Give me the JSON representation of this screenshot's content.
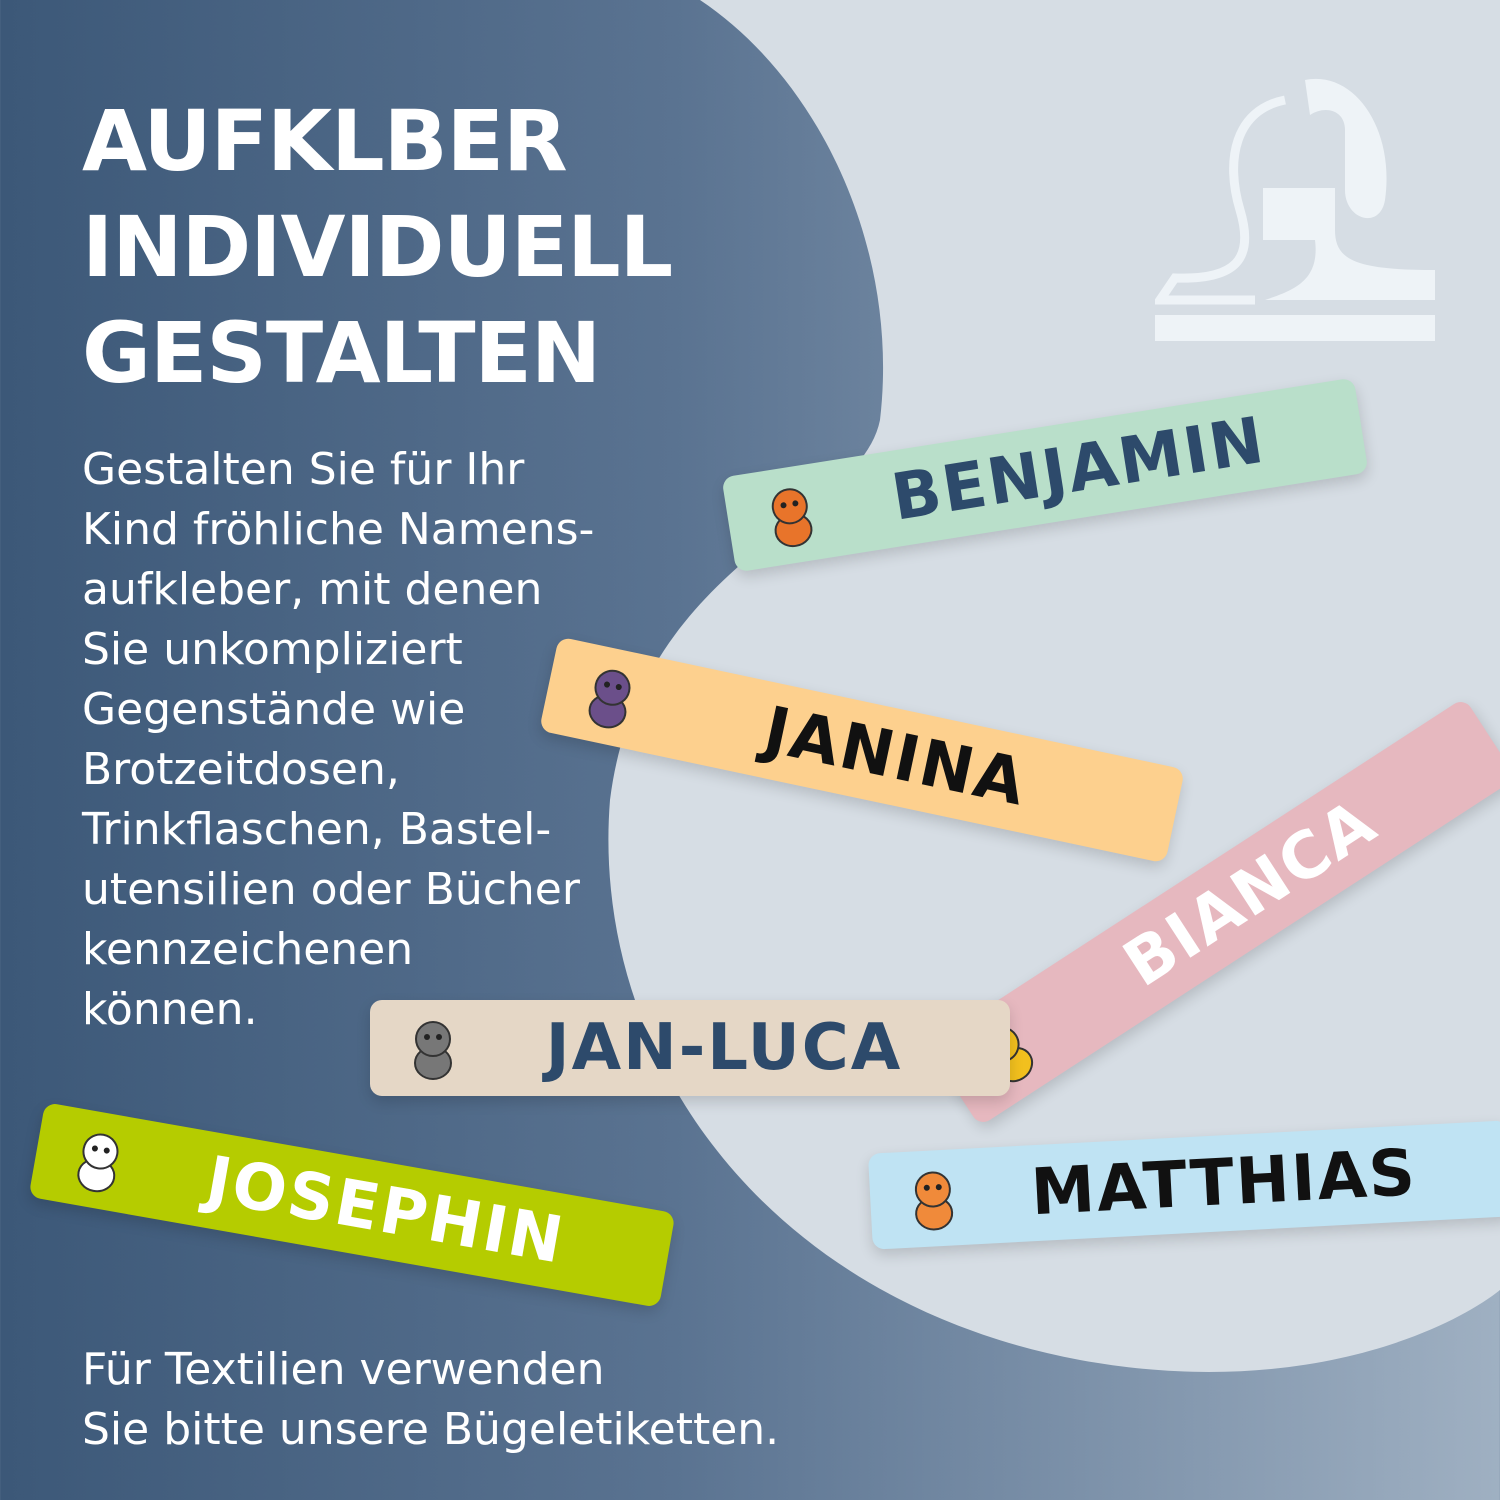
{
  "headline": [
    "AUFKLBER",
    "INDIVIDUELL",
    "GESTALTEN"
  ],
  "body_lines": [
    "Gestalten Sie für Ihr",
    "Kind fröhliche Namens-",
    "aufkleber, mit denen",
    "Sie unkompliziert",
    "Gegenstände wie",
    "Brotzeitdosen,",
    "Trinkflaschen, Bastel-",
    "utensilien oder Bücher",
    "kennzeichenen",
    "können."
  ],
  "footer_lines": [
    "Für Textilien verwenden",
    "Sie bitte unsere Bügeletiketten."
  ],
  "labels": [
    {
      "name": "BENJAMIN",
      "animal": "fox",
      "bg": "#b9dfca",
      "text": "#2d4a6b"
    },
    {
      "name": "JANINA",
      "animal": "owl",
      "bg": "#fdd08e",
      "text": "#111111"
    },
    {
      "name": "BIANCA",
      "animal": "bee",
      "bg": "#e6b8bf",
      "text": "#ffffff"
    },
    {
      "name": "JAN-LUCA",
      "animal": "raccoon",
      "bg": "#e5d7c6",
      "text": "#2d4a6b"
    },
    {
      "name": "JOSEPHIN",
      "animal": "panda",
      "bg": "#b5cc00",
      "text": "#ffffff"
    },
    {
      "name": "MATTHIAS",
      "animal": "cat",
      "bg": "#bfe3f3",
      "text": "#111111"
    }
  ],
  "colors": {
    "dark_bg": "#3c5878",
    "blob": "#d6dde4",
    "logo": "#eef3f7"
  }
}
